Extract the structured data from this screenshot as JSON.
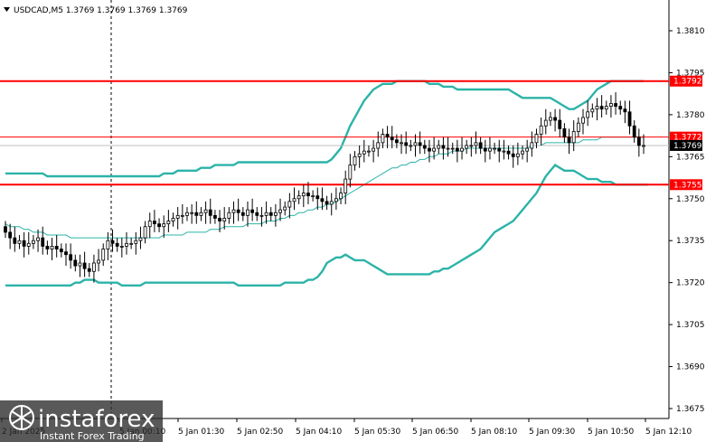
{
  "header": {
    "symbol_line": "USDCAD,M5  1.3769 1.3769 1.3769 1.3769"
  },
  "colors": {
    "background": "#ffffff",
    "candle_up_fill": "#ffffff",
    "candle_down_fill": "#000000",
    "candle_outline": "#000000",
    "bollinger": "#2bb3a8",
    "ma": "#2bb3a8",
    "support_resistance": "#ff0000",
    "price_tag_current": "#000000",
    "price_tag_text": "#ffffff"
  },
  "logo": {
    "name": "instaforex",
    "tagline": "Instant Forex Trading"
  },
  "chart_data": {
    "type": "candlestick",
    "symbol": "USDCAD",
    "timeframe": "M5",
    "ylim": [
      1.3672,
      1.3822
    ],
    "y_ticks": [
      "1.3810",
      "1.3795",
      "1.3780",
      "1.3765",
      "1.3750",
      "1.3735",
      "1.3720",
      "1.3705",
      "1.3690",
      "1.3675"
    ],
    "x_ticks": [
      "2 Jan 2025",
      "5 Jan 00:10",
      "5 Jan 01:30",
      "5 Jan 02:50",
      "5 Jan 04:10",
      "5 Jan 05:30",
      "5 Jan 06:50",
      "5 Jan 08:10",
      "5 Jan 09:30",
      "5 Jan 10:50",
      "5 Jan 12:10"
    ],
    "horizontal_levels": [
      {
        "label": "1.3792",
        "value": 1.3792,
        "style": "thick"
      },
      {
        "label": "1.3772",
        "value": 1.3772,
        "style": "thin"
      },
      {
        "label": "1.3755",
        "value": 1.3755,
        "style": "thick"
      }
    ],
    "current_price": {
      "label": "1.3769",
      "value": 1.3769
    },
    "candles_close": [
      1.3738,
      1.3736,
      1.3734,
      1.3735,
      1.3733,
      1.3734,
      1.3735,
      1.3736,
      1.3733,
      1.3732,
      1.3733,
      1.3732,
      1.3731,
      1.373,
      1.3728,
      1.3726,
      1.3727,
      1.3725,
      1.3724,
      1.3727,
      1.3728,
      1.3732,
      1.3735,
      1.3734,
      1.3733,
      1.3733,
      1.3734,
      1.3734,
      1.3735,
      1.3736,
      1.374,
      1.3742,
      1.3741,
      1.374,
      1.3741,
      1.3742,
      1.3743,
      1.3744,
      1.3744,
      1.3745,
      1.3745,
      1.3744,
      1.3745,
      1.3746,
      1.3744,
      1.3743,
      1.3742,
      1.3743,
      1.3745,
      1.3746,
      1.3745,
      1.3744,
      1.3746,
      1.3745,
      1.3744,
      1.3744,
      1.3745,
      1.3744,
      1.3745,
      1.3746,
      1.3747,
      1.3749,
      1.375,
      1.3751,
      1.3752,
      1.3751,
      1.3751,
      1.375,
      1.3749,
      1.3748,
      1.3749,
      1.375,
      1.3752,
      1.3757,
      1.3762,
      1.3765,
      1.3766,
      1.3767,
      1.3767,
      1.3768,
      1.377,
      1.3773,
      1.3772,
      1.3771,
      1.377,
      1.377,
      1.3769,
      1.3769,
      1.377,
      1.3769,
      1.3768,
      1.3767,
      1.3768,
      1.3769,
      1.3768,
      1.3768,
      1.3768,
      1.3767,
      1.3768,
      1.3769,
      1.3769,
      1.377,
      1.3768,
      1.3767,
      1.3768,
      1.3768,
      1.3767,
      1.3767,
      1.3766,
      1.3765,
      1.3766,
      1.3767,
      1.3768,
      1.377,
      1.3773,
      1.3776,
      1.3778,
      1.3779,
      1.3778,
      1.3775,
      1.3772,
      1.377,
      1.3774,
      1.3777,
      1.3779,
      1.3781,
      1.3782,
      1.3783,
      1.3782,
      1.3783,
      1.3784,
      1.3783,
      1.3782,
      1.3781,
      1.3776,
      1.3772,
      1.3769,
      1.3769
    ],
    "bb_upper": [
      1.3759,
      1.3759,
      1.3759,
      1.3759,
      1.3759,
      1.3759,
      1.3759,
      1.3759,
      1.3759,
      1.3758,
      1.3758,
      1.3758,
      1.3758,
      1.3758,
      1.3758,
      1.3758,
      1.3758,
      1.3758,
      1.3758,
      1.3758,
      1.3758,
      1.3758,
      1.3758,
      1.3758,
      1.3758,
      1.3758,
      1.3758,
      1.3758,
      1.3758,
      1.3758,
      1.3758,
      1.3758,
      1.3758,
      1.3758,
      1.3759,
      1.3759,
      1.3759,
      1.376,
      1.376,
      1.376,
      1.376,
      1.376,
      1.3761,
      1.3761,
      1.3761,
      1.3762,
      1.3762,
      1.3762,
      1.3762,
      1.3762,
      1.3763,
      1.3763,
      1.3763,
      1.3763,
      1.3763,
      1.3763,
      1.3763,
      1.3763,
      1.3763,
      1.3763,
      1.3763,
      1.3763,
      1.3763,
      1.3763,
      1.3763,
      1.3763,
      1.3763,
      1.3763,
      1.3763,
      1.3763,
      1.3764,
      1.3766,
      1.3768,
      1.3772,
      1.3776,
      1.3779,
      1.3782,
      1.3785,
      1.3787,
      1.3789,
      1.379,
      1.3791,
      1.3791,
      1.3791,
      1.3792,
      1.3792,
      1.3792,
      1.3792,
      1.3792,
      1.3792,
      1.3792,
      1.3791,
      1.3791,
      1.3791,
      1.379,
      1.379,
      1.379,
      1.3789,
      1.3789,
      1.3789,
      1.3789,
      1.3789,
      1.3789,
      1.3789,
      1.3789,
      1.3789,
      1.3789,
      1.3789,
      1.3789,
      1.3788,
      1.3787,
      1.3786,
      1.3786,
      1.3786,
      1.3786,
      1.3786,
      1.3786,
      1.3786,
      1.3785,
      1.3784,
      1.3783,
      1.3782,
      1.3782,
      1.3783,
      1.3784,
      1.3785,
      1.3787,
      1.3789,
      1.379,
      1.3791,
      1.3792,
      1.3792,
      1.3792,
      1.3792,
      1.3792,
      1.3792,
      1.3792,
      1.3792
    ],
    "bb_middle": [
      1.3741,
      1.374,
      1.374,
      1.374,
      1.3739,
      1.3739,
      1.3738,
      1.3738,
      1.3738,
      1.3737,
      1.3737,
      1.3737,
      1.3737,
      1.3737,
      1.3736,
      1.3736,
      1.3736,
      1.3736,
      1.3736,
      1.3736,
      1.3736,
      1.3736,
      1.3736,
      1.3736,
      1.3736,
      1.3736,
      1.3736,
      1.3736,
      1.3736,
      1.3736,
      1.3736,
      1.3736,
      1.3736,
      1.3736,
      1.3737,
      1.3737,
      1.3737,
      1.3737,
      1.3737,
      1.3738,
      1.3738,
      1.3738,
      1.3738,
      1.3738,
      1.3739,
      1.3739,
      1.3739,
      1.374,
      1.374,
      1.374,
      1.374,
      1.374,
      1.3741,
      1.3741,
      1.3741,
      1.3741,
      1.3742,
      1.3742,
      1.3742,
      1.3743,
      1.3743,
      1.3744,
      1.3744,
      1.3745,
      1.3745,
      1.3746,
      1.3746,
      1.3747,
      1.3747,
      1.3748,
      1.3748,
      1.3749,
      1.375,
      1.3751,
      1.3752,
      1.3753,
      1.3754,
      1.3755,
      1.3756,
      1.3757,
      1.3758,
      1.3759,
      1.376,
      1.3761,
      1.3761,
      1.3762,
      1.3762,
      1.3763,
      1.3763,
      1.3764,
      1.3764,
      1.3765,
      1.3765,
      1.3766,
      1.3766,
      1.3766,
      1.3767,
      1.3767,
      1.3767,
      1.3768,
      1.3768,
      1.3768,
      1.3768,
      1.3768,
      1.3768,
      1.3768,
      1.3768,
      1.3768,
      1.3768,
      1.3768,
      1.3768,
      1.3768,
      1.3768,
      1.3769,
      1.3769,
      1.3769,
      1.377,
      1.377,
      1.377,
      1.377,
      1.377,
      1.377,
      1.377,
      1.377,
      1.3771,
      1.3771,
      1.3771,
      1.3771,
      1.3772,
      1.3772,
      1.3772,
      1.3772,
      1.3772,
      1.3772,
      1.3772,
      1.3772,
      1.3772,
      1.3772
    ],
    "bb_lower": [
      1.3719,
      1.3719,
      1.3719,
      1.3719,
      1.3719,
      1.3719,
      1.3719,
      1.3719,
      1.3719,
      1.3719,
      1.3719,
      1.3719,
      1.3719,
      1.3719,
      1.3719,
      1.372,
      1.372,
      1.3721,
      1.3721,
      1.3721,
      1.372,
      1.372,
      1.372,
      1.372,
      1.372,
      1.3719,
      1.3719,
      1.3719,
      1.3719,
      1.3719,
      1.372,
      1.372,
      1.372,
      1.372,
      1.372,
      1.372,
      1.372,
      1.372,
      1.372,
      1.372,
      1.372,
      1.372,
      1.372,
      1.372,
      1.372,
      1.372,
      1.372,
      1.372,
      1.372,
      1.372,
      1.3719,
      1.3719,
      1.3719,
      1.3719,
      1.3719,
      1.3719,
      1.3719,
      1.3719,
      1.3719,
      1.3719,
      1.372,
      1.372,
      1.372,
      1.372,
      1.372,
      1.3721,
      1.3721,
      1.3722,
      1.3724,
      1.3727,
      1.3728,
      1.3729,
      1.3729,
      1.373,
      1.3729,
      1.3728,
      1.3728,
      1.3728,
      1.3727,
      1.3726,
      1.3725,
      1.3724,
      1.3723,
      1.3723,
      1.3723,
      1.3723,
      1.3723,
      1.3723,
      1.3723,
      1.3723,
      1.3723,
      1.3723,
      1.3724,
      1.3724,
      1.3725,
      1.3725,
      1.3726,
      1.3727,
      1.3728,
      1.3729,
      1.373,
      1.3731,
      1.3732,
      1.3734,
      1.3736,
      1.3738,
      1.3739,
      1.374,
      1.3741,
      1.3742,
      1.3744,
      1.3746,
      1.3748,
      1.375,
      1.3752,
      1.3755,
      1.3758,
      1.376,
      1.3762,
      1.3761,
      1.376,
      1.376,
      1.376,
      1.3759,
      1.3758,
      1.3757,
      1.3757,
      1.3757,
      1.3756,
      1.3756,
      1.3756,
      1.3755,
      1.3755,
      1.3755,
      1.3755,
      1.3755,
      1.3755,
      1.3755,
      1.3755
    ]
  }
}
